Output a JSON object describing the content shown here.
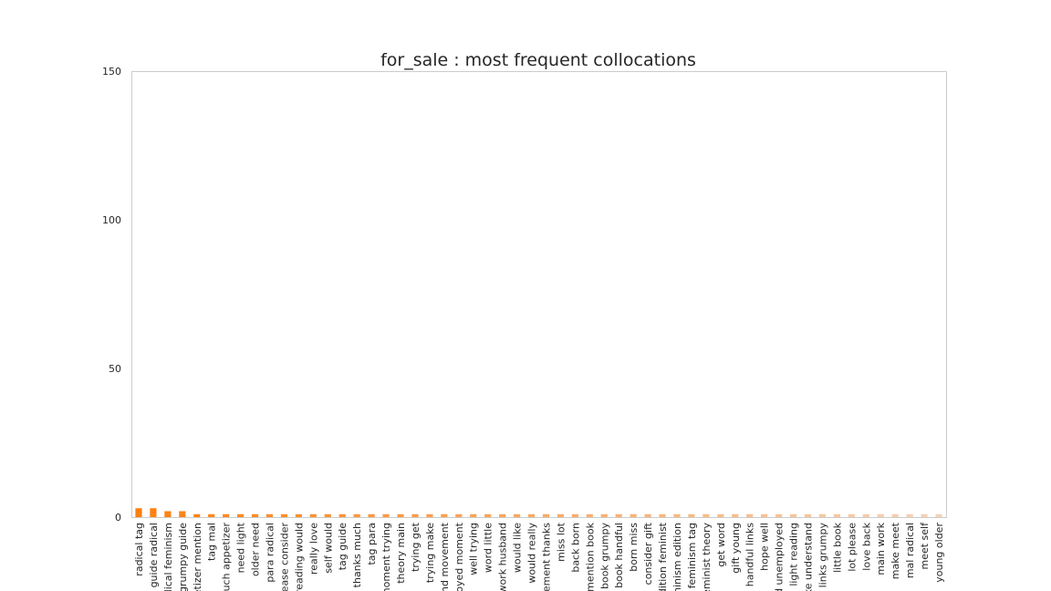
{
  "chart_data": {
    "type": "bar",
    "title": "for_sale : most frequent collocations",
    "xlabel": "",
    "ylabel": "",
    "ylim": [
      0,
      150
    ],
    "yticks": [
      0,
      50,
      100,
      150
    ],
    "grid": false,
    "legend": "none",
    "color_start": "#ff7f0e",
    "color_end": "#f5d3b8",
    "categories": [
      "radical tag",
      "guide radical",
      "dical feminism",
      "grumpy guide",
      "petizer mention",
      "tag mal",
      "nuch appetizer",
      "need light",
      "older need",
      "para radical",
      "lease consider",
      "reading would",
      "really love",
      "self would",
      "tag guide",
      "thanks much",
      "tag para",
      "moment trying",
      "theory main",
      "trying get",
      "trying make",
      "and movement",
      "loyed moment",
      "well trying",
      "word little",
      "work husband",
      "would like",
      "would really",
      "vement thanks",
      "miss lot",
      "back born",
      "mention book",
      "book grumpy",
      "book handful",
      "born miss",
      "consider gift",
      "edition feminist",
      "minism edition",
      "feminism tag",
      "feminist theory",
      "get word",
      "gift young",
      "handful links",
      "hope well",
      "d unemployed",
      "light reading",
      "ke understand",
      "links grumpy",
      "little book",
      "lot please",
      "love back",
      "main work",
      "make meet",
      "mal radical",
      "meet self",
      "young older"
    ],
    "values": [
      3,
      3,
      2,
      2,
      1,
      1,
      1,
      1,
      1,
      1,
      1,
      1,
      1,
      1,
      1,
      1,
      1,
      1,
      1,
      1,
      1,
      1,
      1,
      1,
      1,
      1,
      1,
      1,
      1,
      1,
      1,
      1,
      1,
      1,
      1,
      1,
      1,
      1,
      1,
      1,
      1,
      1,
      1,
      1,
      1,
      1,
      1,
      1,
      1,
      1,
      1,
      1,
      1,
      1,
      1,
      1
    ]
  }
}
